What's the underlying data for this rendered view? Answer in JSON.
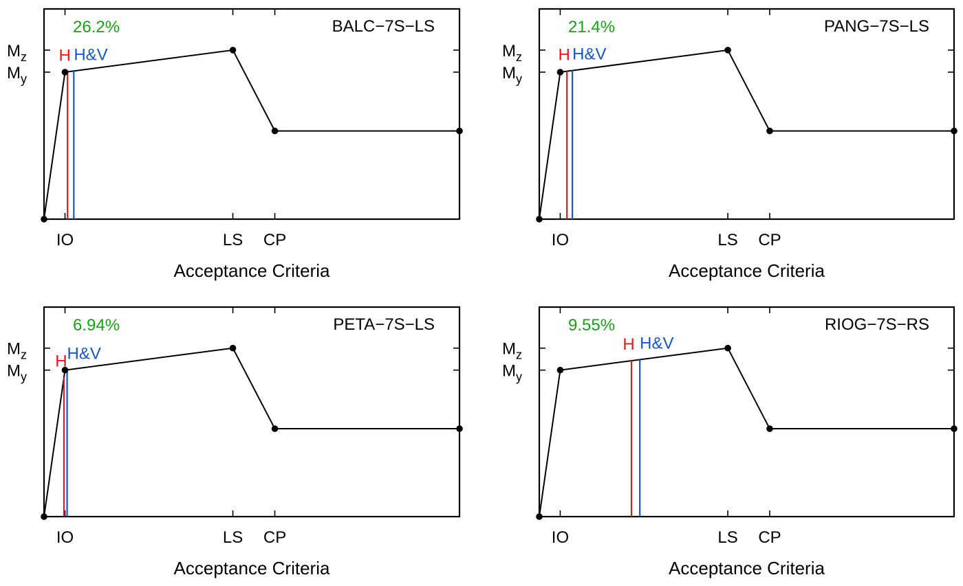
{
  "chart_data": [
    {
      "type": "line",
      "title": "BALC−7S−LS",
      "annotation": "26.2%",
      "xlabel": "Acceptance Criteria",
      "x_ticks": [
        {
          "label": "IO",
          "x": 1.0
        },
        {
          "label": "LS",
          "x": 9.0
        },
        {
          "label": "CP",
          "x": 11.0
        }
      ],
      "y_ticks": [
        {
          "label": "M",
          "sub": "z",
          "y": 1.15
        },
        {
          "label": "M",
          "sub": "y",
          "y": 1.0
        }
      ],
      "xlim": [
        0,
        19.8
      ],
      "ylim": [
        0,
        1.43
      ],
      "curve": [
        {
          "x": 0,
          "y": 0
        },
        {
          "x": 1.0,
          "y": 1.0
        },
        {
          "x": 9.0,
          "y": 1.15
        },
        {
          "x": 11.0,
          "y": 0.6
        },
        {
          "x": 19.8,
          "y": 0.6
        }
      ],
      "markers": [
        {
          "name": "H",
          "x": 1.12,
          "color": "#e8161e"
        },
        {
          "name": "H&V",
          "x": 1.42,
          "color": "#1a55c4"
        }
      ],
      "annotation_color": "#1aa01a"
    },
    {
      "type": "line",
      "title": "PANG−7S−LS",
      "annotation": "21.4%",
      "xlabel": "Acceptance Criteria",
      "x_ticks": [
        {
          "label": "IO",
          "x": 1.0
        },
        {
          "label": "LS",
          "x": 9.0
        },
        {
          "label": "CP",
          "x": 11.0
        }
      ],
      "y_ticks": [
        {
          "label": "M",
          "sub": "z",
          "y": 1.15
        },
        {
          "label": "M",
          "sub": "y",
          "y": 1.0
        }
      ],
      "xlim": [
        0,
        19.8
      ],
      "ylim": [
        0,
        1.43
      ],
      "curve": [
        {
          "x": 0,
          "y": 0
        },
        {
          "x": 1.0,
          "y": 1.0
        },
        {
          "x": 9.0,
          "y": 1.15
        },
        {
          "x": 11.0,
          "y": 0.6
        },
        {
          "x": 19.8,
          "y": 0.6
        }
      ],
      "markers": [
        {
          "name": "H",
          "x": 1.32,
          "color": "#e8161e"
        },
        {
          "name": "H&V",
          "x": 1.58,
          "color": "#1a55c4"
        }
      ],
      "annotation_color": "#1aa01a"
    },
    {
      "type": "line",
      "title": "PETA−7S−LS",
      "annotation": "6.94%",
      "xlabel": "Acceptance Criteria",
      "x_ticks": [
        {
          "label": "IO",
          "x": 1.0
        },
        {
          "label": "LS",
          "x": 9.0
        },
        {
          "label": "CP",
          "x": 11.0
        }
      ],
      "y_ticks": [
        {
          "label": "M",
          "sub": "z",
          "y": 1.15
        },
        {
          "label": "M",
          "sub": "y",
          "y": 1.0
        }
      ],
      "xlim": [
        0,
        19.8
      ],
      "ylim": [
        0,
        1.43
      ],
      "curve": [
        {
          "x": 0,
          "y": 0
        },
        {
          "x": 1.0,
          "y": 1.0
        },
        {
          "x": 9.0,
          "y": 1.15
        },
        {
          "x": 11.0,
          "y": 0.6
        },
        {
          "x": 19.8,
          "y": 0.6
        }
      ],
      "markers": [
        {
          "name": "H",
          "x": 0.95,
          "color": "#e8161e"
        },
        {
          "name": "H&V",
          "x": 1.1,
          "color": "#1a55c4"
        }
      ],
      "annotation_color": "#1aa01a"
    },
    {
      "type": "line",
      "title": "RIOG−7S−RS",
      "annotation": "9.55%",
      "xlabel": "Acceptance Criteria",
      "x_ticks": [
        {
          "label": "IO",
          "x": 1.0
        },
        {
          "label": "LS",
          "x": 9.0
        },
        {
          "label": "CP",
          "x": 11.0
        }
      ],
      "y_ticks": [
        {
          "label": "M",
          "sub": "z",
          "y": 1.15
        },
        {
          "label": "M",
          "sub": "y",
          "y": 1.0
        }
      ],
      "xlim": [
        0,
        19.8
      ],
      "ylim": [
        0,
        1.43
      ],
      "curve": [
        {
          "x": 0,
          "y": 0
        },
        {
          "x": 1.0,
          "y": 1.0
        },
        {
          "x": 9.0,
          "y": 1.15
        },
        {
          "x": 11.0,
          "y": 0.6
        },
        {
          "x": 19.8,
          "y": 0.6
        }
      ],
      "markers": [
        {
          "name": "H",
          "x": 4.4,
          "color": "#e8161e"
        },
        {
          "name": "H&V",
          "x": 4.8,
          "color": "#1a55c4"
        }
      ],
      "annotation_color": "#1aa01a"
    }
  ]
}
